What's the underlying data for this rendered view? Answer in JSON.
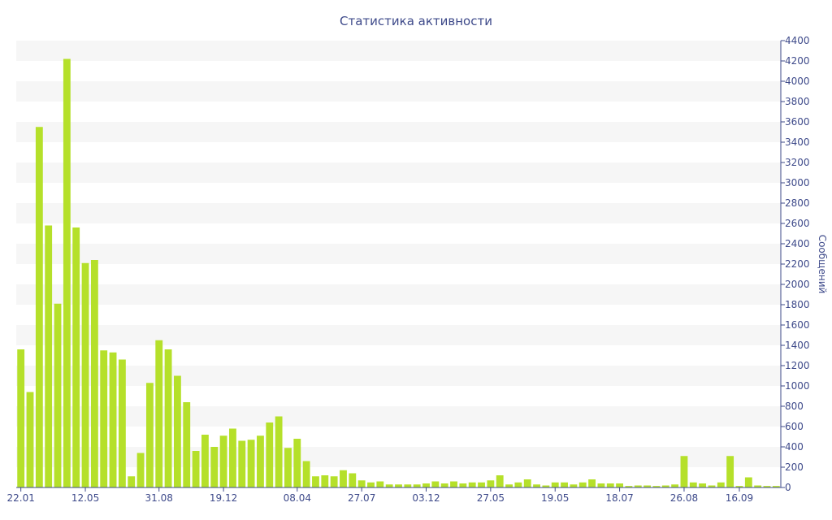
{
  "chart_data": {
    "type": "bar",
    "title": "Статистика активности",
    "xlabel": "",
    "ylabel": "Сообщений",
    "ylim": [
      0,
      4400
    ],
    "y_ticks": [
      0,
      200,
      400,
      600,
      800,
      1000,
      1200,
      1400,
      1600,
      1800,
      2000,
      2200,
      2400,
      2600,
      2800,
      3000,
      3200,
      3400,
      3600,
      3800,
      4000,
      4200,
      4400
    ],
    "y_axis_side": "right",
    "grid": "alternating horizontal bands",
    "bar_color": "#b5e02a",
    "x_tick_labels": [
      {
        "label": "22.01",
        "index": 0
      },
      {
        "label": "12.05",
        "index": 7
      },
      {
        "label": "31.08",
        "index": 15
      },
      {
        "label": "19.12",
        "index": 22
      },
      {
        "label": "08.04",
        "index": 30
      },
      {
        "label": "27.07",
        "index": 37
      },
      {
        "label": "03.12",
        "index": 44
      },
      {
        "label": "27.05",
        "index": 51
      },
      {
        "label": "19.05",
        "index": 58
      },
      {
        "label": "18.07",
        "index": 65
      },
      {
        "label": "26.08",
        "index": 72
      },
      {
        "label": "16.09",
        "index": 78
      }
    ],
    "values": [
      1360,
      940,
      3550,
      2580,
      1810,
      4220,
      2560,
      2210,
      2240,
      1350,
      1330,
      1260,
      110,
      340,
      1030,
      1450,
      1360,
      1100,
      840,
      360,
      520,
      400,
      510,
      580,
      460,
      470,
      510,
      640,
      700,
      390,
      480,
      260,
      110,
      120,
      110,
      170,
      140,
      70,
      50,
      60,
      30,
      30,
      30,
      30,
      40,
      60,
      40,
      60,
      40,
      50,
      50,
      70,
      120,
      30,
      50,
      80,
      30,
      20,
      50,
      50,
      30,
      50,
      80,
      40,
      40,
      40,
      15,
      20,
      20,
      15,
      20,
      30,
      310,
      50,
      40,
      20,
      50,
      310,
      15,
      100,
      20,
      15,
      15
    ]
  }
}
